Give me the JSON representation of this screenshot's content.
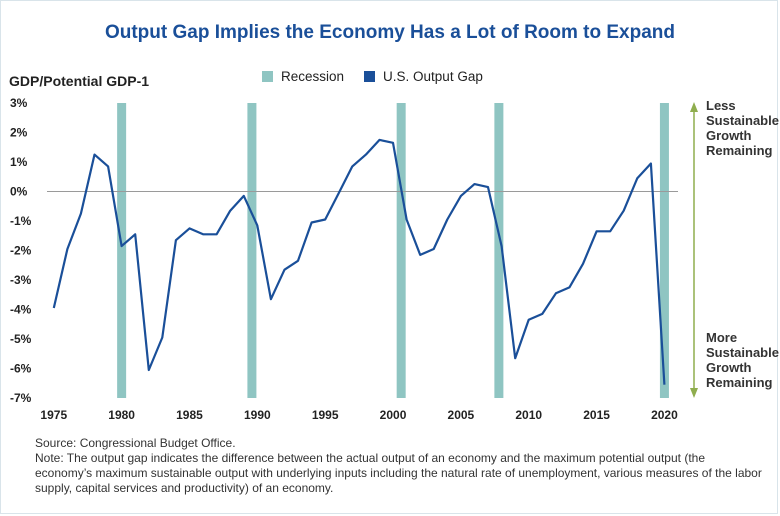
{
  "title": "Output Gap Implies the Economy Has a Lot of Room to Expand",
  "legend": {
    "recession_label": "Recession",
    "gap_label": "U.S. Output Gap"
  },
  "annotations": {
    "top": "Less\nSustainable\nGrowth\nRemaining",
    "bottom": "More\nSustainable\nGrowth\nRemaining"
  },
  "notes": {
    "source": "Source: Congressional Budget Office.",
    "note": "Note: The output gap indicates the difference between the actual output of an economy and the maximum potential output (the economy’s maximum sustainable output with underlying inputs including the natural rate of unemployment, various measures of the labor supply, capital services and productivity) of an economy."
  },
  "colors": {
    "line": "#1a4f99",
    "recession": "#8fc5c2",
    "arrow": "#8fad4e",
    "title": "#1a4f99"
  },
  "chart_data": {
    "type": "line",
    "ylabel": "GDP/Potential GDP-1",
    "xlabel": "",
    "xlim": [
      1974.5,
      2021
    ],
    "ylim": [
      -7,
      3
    ],
    "x_ticks": [
      1975,
      1980,
      1985,
      1990,
      1995,
      2000,
      2005,
      2010,
      2015,
      2020
    ],
    "y_ticks": [
      3,
      2,
      1,
      0,
      -1,
      -2,
      -3,
      -4,
      -5,
      -6,
      -7
    ],
    "y_tick_labels": [
      "3%",
      "2%",
      "1%",
      "0%",
      "-1%",
      "-2%",
      "-3%",
      "-4%",
      "-5%",
      "-6%",
      "-7%"
    ],
    "recessions": [
      1980,
      1989.6,
      2000.6,
      2007.8,
      2020
    ],
    "series": [
      {
        "name": "U.S. Output Gap",
        "x": [
          1975,
          1976,
          1977,
          1978,
          1979,
          1980,
          1981,
          1982,
          1983,
          1984,
          1985,
          1986,
          1987,
          1988,
          1989,
          1990,
          1991,
          1992,
          1993,
          1994,
          1995,
          1996,
          1997,
          1998,
          1999,
          2000,
          2001,
          2002,
          2003,
          2004,
          2005,
          2006,
          2007,
          2008,
          2009,
          2010,
          2011,
          2012,
          2013,
          2014,
          2015,
          2016,
          2017,
          2018,
          2019,
          2020
        ],
        "values": [
          -3.95,
          -1.95,
          -0.75,
          1.25,
          0.85,
          -1.85,
          -1.45,
          -6.05,
          -4.95,
          -1.65,
          -1.25,
          -1.45,
          -1.45,
          -0.65,
          -0.15,
          -1.15,
          -3.65,
          -2.65,
          -2.35,
          -1.05,
          -0.95,
          -0.05,
          0.85,
          1.25,
          1.75,
          1.65,
          -0.95,
          -2.15,
          -1.95,
          -0.95,
          -0.15,
          0.25,
          0.15,
          -1.85,
          -5.65,
          -4.35,
          -4.15,
          -3.45,
          -3.25,
          -2.45,
          -1.35,
          -1.35,
          -0.65,
          0.45,
          0.95,
          -6.55
        ]
      }
    ]
  }
}
